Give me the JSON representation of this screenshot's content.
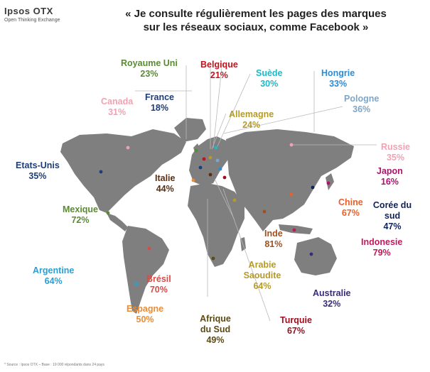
{
  "brand": {
    "name": "Ipsos OTX",
    "tagline": "Open Thinking Exchange"
  },
  "headline": [
    "« Je consulte régulièrement les pages des marques",
    "sur les réseaux sociaux, comme Facebook »"
  ],
  "footer": "* Source : Ipsos OTX – Base : 19 000 répondants dans 24 pays",
  "countries": [
    {
      "id": "royaume-uni",
      "name": "Royaume Uni",
      "value": "23%",
      "color": "#5b8a35"
    },
    {
      "id": "belgique",
      "name": "Belgique",
      "value": "21%",
      "color": "#c0131d"
    },
    {
      "id": "suede",
      "name": "Suède",
      "value": "30%",
      "color": "#1fb8c7"
    },
    {
      "id": "hongrie",
      "name": "Hongrie",
      "value": "33%",
      "color": "#2d8bd2"
    },
    {
      "id": "canada",
      "name": "Canada",
      "value": "31%",
      "color": "#f0a2b3"
    },
    {
      "id": "france",
      "name": "France",
      "value": "18%",
      "color": "#1d3d7a"
    },
    {
      "id": "pologne",
      "name": "Pologne",
      "value": "36%",
      "color": "#7fa6c6"
    },
    {
      "id": "allemagne",
      "name": "Allemagne",
      "value": "24%",
      "color": "#b49a2a"
    },
    {
      "id": "russie",
      "name": "Russie",
      "value": "35%",
      "color": "#f0a2b3"
    },
    {
      "id": "etats-unis",
      "name": "Etats-Unis",
      "value": "35%",
      "color": "#1d3d7a"
    },
    {
      "id": "japon",
      "name": "Japon",
      "value": "16%",
      "color": "#b0126b"
    },
    {
      "id": "italie",
      "name": "Italie",
      "value": "44%",
      "color": "#5a2e14"
    },
    {
      "id": "chine",
      "name": "Chine",
      "value": "67%",
      "color": "#e8602c"
    },
    {
      "id": "coree",
      "name": "Corée du sud",
      "value": "47%",
      "color": "#10225a"
    },
    {
      "id": "mexique",
      "name": "Mexique",
      "value": "72%",
      "color": "#5b8a35"
    },
    {
      "id": "inde",
      "name": "Inde",
      "value": "81%",
      "color": "#a1501f"
    },
    {
      "id": "indonesie",
      "name": "Indonesie",
      "value": "79%",
      "color": "#c2185b"
    },
    {
      "id": "argentine",
      "name": "Argentine",
      "value": "64%",
      "color": "#2a9fd6"
    },
    {
      "id": "arabie",
      "name": "Arabie Saoudite",
      "value": "64%",
      "color": "#b49a2a"
    },
    {
      "id": "bresil",
      "name": "Brésil",
      "value": "70%",
      "color": "#d84b47"
    },
    {
      "id": "australie",
      "name": "Australie",
      "value": "32%",
      "color": "#3a2a7a"
    },
    {
      "id": "espagne",
      "name": "Espagne",
      "value": "50%",
      "color": "#ee8b2f"
    },
    {
      "id": "afrique-du-sud",
      "name": "Afrique du Sud",
      "value": "49%",
      "color": "#5a4a16"
    },
    {
      "id": "turquie",
      "name": "Turquie",
      "value": "67%",
      "color": "#9b1020"
    }
  ]
}
